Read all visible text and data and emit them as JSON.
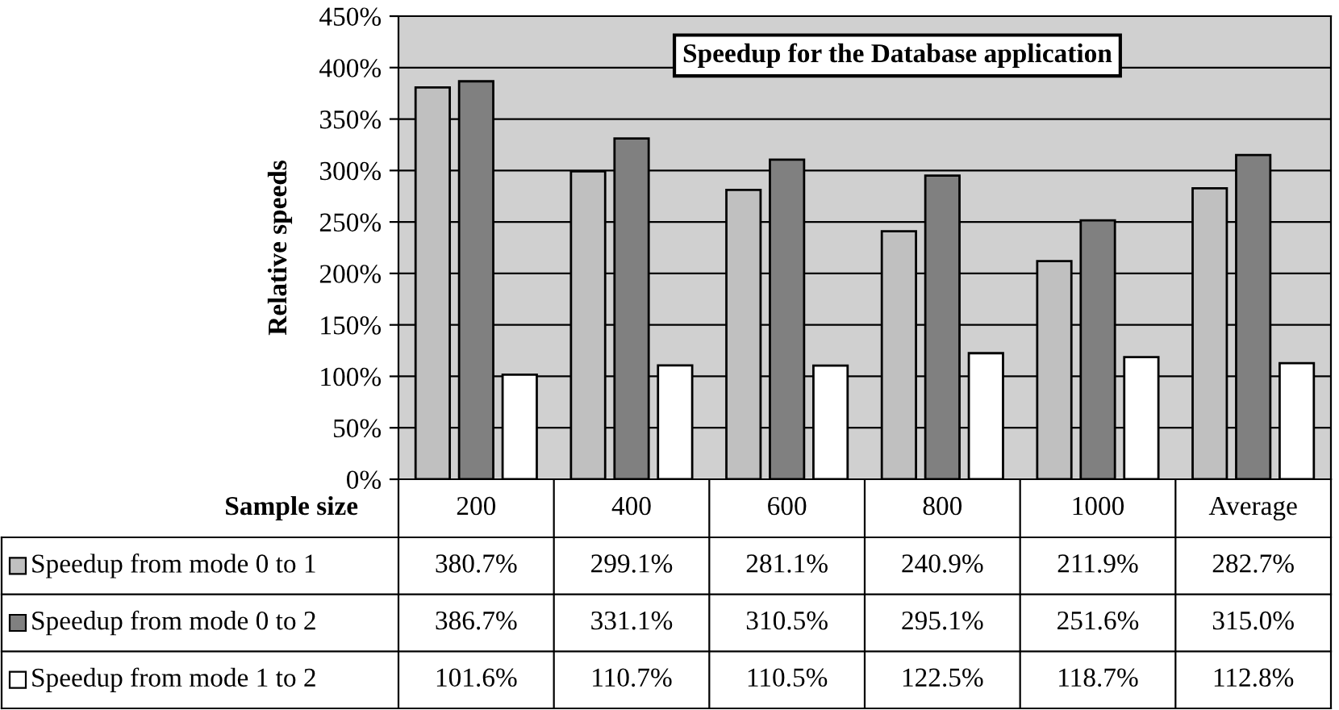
{
  "chart_data": {
    "type": "bar",
    "title": "Speedup for the Database application",
    "ylabel": "Relative speeds",
    "xlabel": "Sample size",
    "categories": [
      "200",
      "400",
      "600",
      "800",
      "1000",
      "Average"
    ],
    "series": [
      {
        "name": "Speedup from mode 0 to 1",
        "color": "#c0c0c0",
        "values": [
          380.7,
          299.1,
          281.1,
          240.9,
          211.9,
          282.7
        ],
        "value_labels": [
          "380.7%",
          "299.1%",
          "281.1%",
          "240.9%",
          "211.9%",
          "282.7%"
        ]
      },
      {
        "name": "Speedup from mode 0 to 2",
        "color": "#808080",
        "values": [
          386.7,
          331.1,
          310.5,
          295.1,
          251.6,
          315.0
        ],
        "value_labels": [
          "386.7%",
          "331.1%",
          "310.5%",
          "295.1%",
          "251.6%",
          "315.0%"
        ]
      },
      {
        "name": "Speedup from mode 1 to 2",
        "color": "#ffffff",
        "values": [
          101.6,
          110.7,
          110.5,
          122.5,
          118.7,
          112.8
        ],
        "value_labels": [
          "101.6%",
          "110.7%",
          "110.5%",
          "122.5%",
          "118.7%",
          "112.8%"
        ]
      }
    ],
    "ylim": [
      0,
      450
    ],
    "yticks": [
      {
        "value": 0,
        "label": "0%"
      },
      {
        "value": 50,
        "label": "50%"
      },
      {
        "value": 100,
        "label": "100%"
      },
      {
        "value": 150,
        "label": "150%"
      },
      {
        "value": 200,
        "label": "200%"
      },
      {
        "value": 250,
        "label": "250%"
      },
      {
        "value": 300,
        "label": "300%"
      },
      {
        "value": 350,
        "label": "350%"
      },
      {
        "value": 400,
        "label": "400%"
      },
      {
        "value": 450,
        "label": "450%"
      }
    ],
    "grid": "y",
    "legend": "bottom left",
    "tick_labels": "y"
  }
}
